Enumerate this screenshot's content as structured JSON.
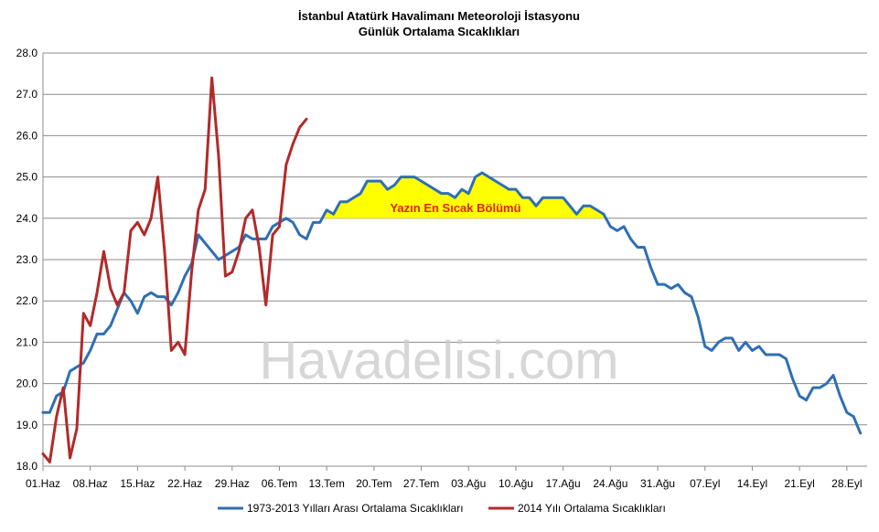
{
  "chart_data": {
    "type": "line",
    "title": "İstanbul  Atatürk Havalimanı  Meteoroloji  İstasyonu",
    "subtitle": "Günlük  Ortalama  Sıcaklıkları",
    "xlabel": "",
    "ylabel": "",
    "ylim": [
      18.0,
      28.0
    ],
    "yticks": [
      "18.0",
      "19.0",
      "20.0",
      "21.0",
      "22.0",
      "23.0",
      "24.0",
      "25.0",
      "26.0",
      "27.0",
      "28.0"
    ],
    "x_ticks": [
      "01.Haz",
      "08.Haz",
      "15.Haz",
      "22.Haz",
      "29.Haz",
      "06.Tem",
      "13.Tem",
      "20.Tem",
      "27.Tem",
      "03.Ağu",
      "10.Ağu",
      "17.Ağu",
      "24.Ağu",
      "31.Ağu",
      "07.Eyl",
      "14.Eyl",
      "21.Eyl",
      "28.Eyl"
    ],
    "x_start": "01.Haz",
    "grid": true,
    "legend_position": "bottom",
    "watermark": "Havadelisi.com",
    "annotation": {
      "text": "Yazın En Sıcak Bölümü",
      "text_color": "#e2231a",
      "fill_color": "#ffff00",
      "threshold": 24.0
    },
    "series": [
      {
        "name": "1973-2013 Yılları Arası Ortalama Sıcaklıkları",
        "color": "#2e6fb4",
        "values": [
          19.3,
          19.3,
          19.7,
          19.8,
          20.3,
          20.4,
          20.5,
          20.8,
          21.2,
          21.2,
          21.4,
          21.8,
          22.2,
          22.0,
          21.7,
          22.1,
          22.2,
          22.1,
          22.1,
          21.9,
          22.2,
          22.6,
          22.9,
          23.6,
          23.4,
          23.2,
          23.0,
          23.1,
          23.2,
          23.3,
          23.6,
          23.5,
          23.5,
          23.5,
          23.8,
          23.9,
          24.0,
          23.9,
          23.6,
          23.5,
          23.9,
          23.9,
          24.2,
          24.1,
          24.4,
          24.4,
          24.5,
          24.6,
          24.9,
          24.9,
          24.9,
          24.7,
          24.8,
          25.0,
          25.0,
          25.0,
          24.9,
          24.8,
          24.7,
          24.6,
          24.6,
          24.5,
          24.7,
          24.6,
          25.0,
          25.1,
          25.0,
          24.9,
          24.8,
          24.7,
          24.7,
          24.5,
          24.5,
          24.3,
          24.5,
          24.5,
          24.5,
          24.5,
          24.3,
          24.1,
          24.3,
          24.3,
          24.2,
          24.1,
          23.8,
          23.7,
          23.8,
          23.5,
          23.3,
          23.3,
          22.8,
          22.4,
          22.4,
          22.3,
          22.4,
          22.2,
          22.1,
          21.6,
          20.9,
          20.8,
          21.0,
          21.1,
          21.1,
          20.8,
          21.0,
          20.8,
          20.9,
          20.7,
          20.7,
          20.7,
          20.6,
          20.1,
          19.7,
          19.6,
          19.9,
          19.9,
          20.0,
          20.2,
          19.7,
          19.3,
          19.2,
          18.8
        ]
      },
      {
        "name": "2014 Yılı Ortalama Sıcaklıkları",
        "color": "#b22a2a",
        "values": [
          18.3,
          18.1,
          19.2,
          19.9,
          18.2,
          18.9,
          21.7,
          21.4,
          22.2,
          23.2,
          22.3,
          21.9,
          22.2,
          23.7,
          23.9,
          23.6,
          24.0,
          25.0,
          23.2,
          20.8,
          21.0,
          20.7,
          22.7,
          24.2,
          24.7,
          27.4,
          25.5,
          22.6,
          22.7,
          23.2,
          24.0,
          24.2,
          23.3,
          21.9,
          23.6,
          23.8,
          25.3,
          25.8,
          26.2,
          26.4
        ]
      }
    ]
  }
}
